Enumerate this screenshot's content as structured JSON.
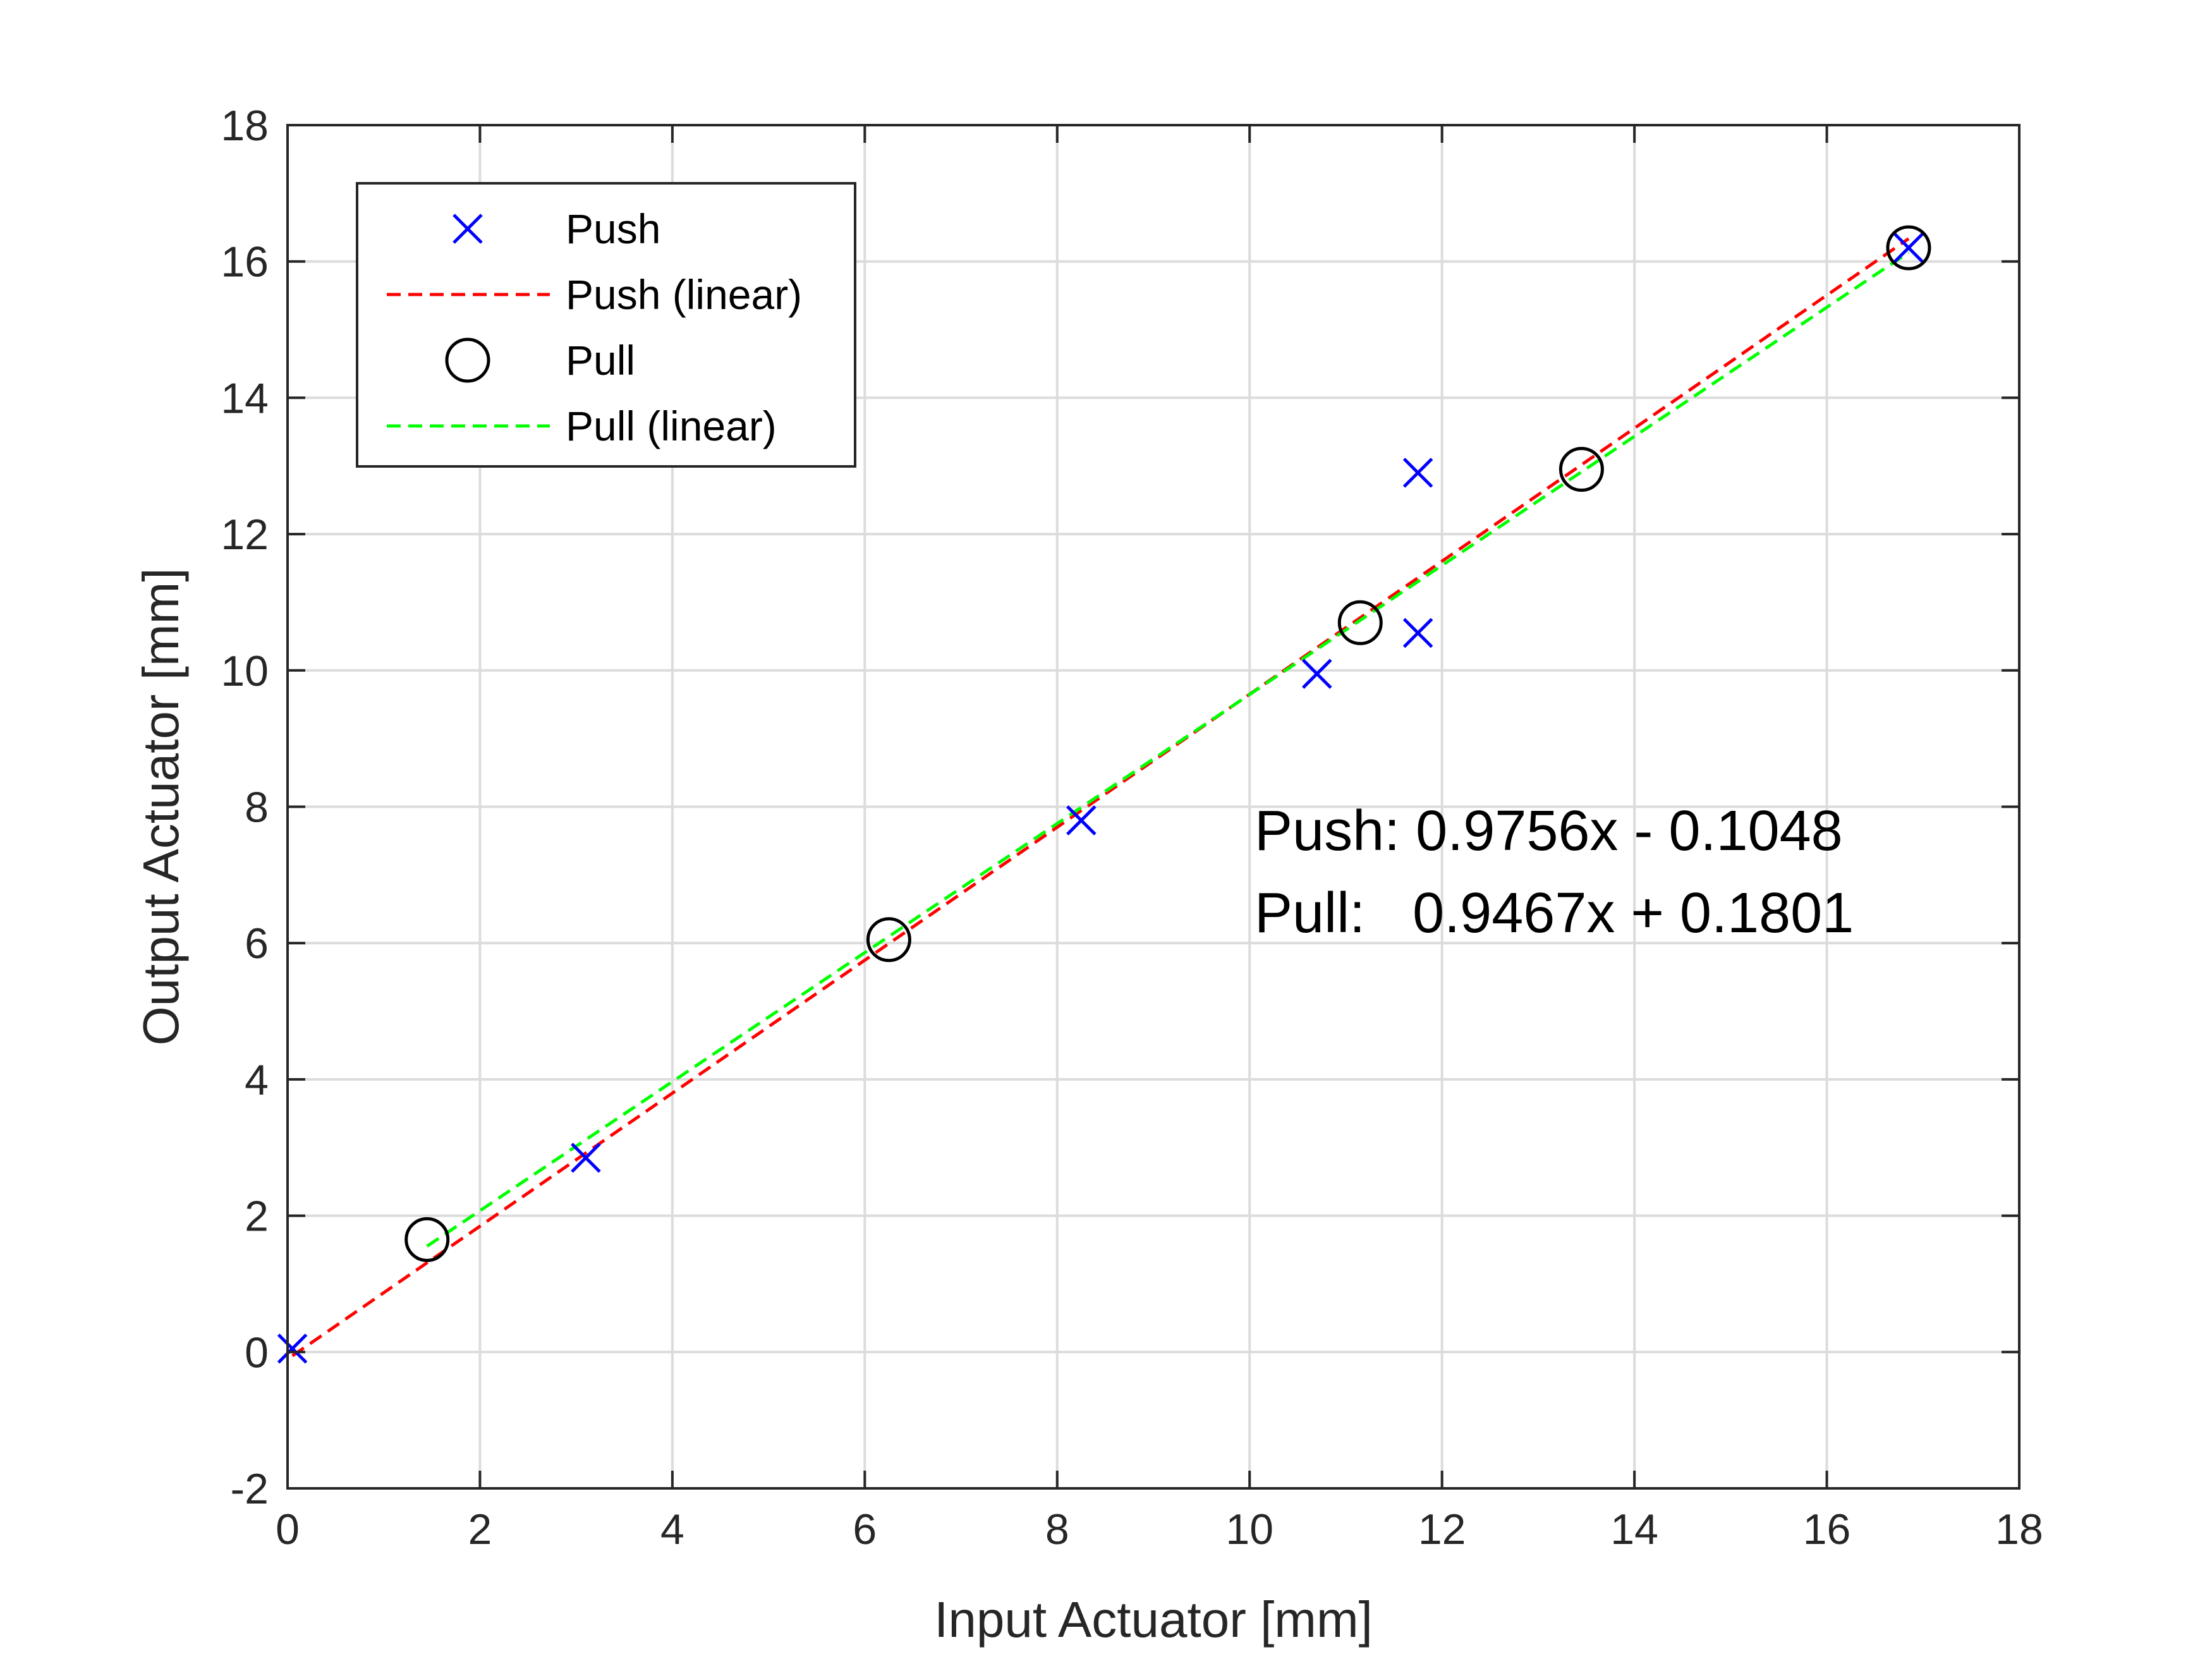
{
  "chart_data": {
    "type": "scatter",
    "xlabel": "Input Actuator [mm]",
    "ylabel": "Output Actuator [mm]",
    "xlim": [
      0,
      18
    ],
    "ylim": [
      -2,
      18
    ],
    "xticks": [
      "0",
      "2",
      "4",
      "6",
      "8",
      "10",
      "12",
      "14",
      "16",
      "18"
    ],
    "yticks": [
      "-2",
      "0",
      "2",
      "4",
      "6",
      "8",
      "10",
      "12",
      "14",
      "16",
      "18"
    ],
    "grid": true,
    "legend_position": "top-left",
    "series": [
      {
        "name": "Push",
        "kind": "markers",
        "marker": "x",
        "color": "#0000ff",
        "points": [
          [
            0.05,
            0.05
          ],
          [
            3.1,
            2.85
          ],
          [
            8.25,
            7.8
          ],
          [
            10.7,
            9.95
          ],
          [
            11.75,
            12.9
          ],
          [
            11.75,
            10.55
          ],
          [
            16.85,
            16.2
          ]
        ]
      },
      {
        "name": "Push (linear)",
        "kind": "line",
        "dash": "dashed",
        "color": "#ff0000",
        "slope": 0.9756,
        "intercept": -0.1048,
        "x_range": [
          0.05,
          16.85
        ]
      },
      {
        "name": "Pull",
        "kind": "markers",
        "marker": "o",
        "color": "#000000",
        "points": [
          [
            1.45,
            1.65
          ],
          [
            6.25,
            6.05
          ],
          [
            11.15,
            10.7
          ],
          [
            13.45,
            12.95
          ],
          [
            16.85,
            16.2
          ]
        ]
      },
      {
        "name": "Pull (linear)",
        "kind": "line",
        "dash": "dashed",
        "color": "#00ff00",
        "slope": 0.9467,
        "intercept": 0.1801,
        "x_range": [
          1.45,
          16.85
        ]
      }
    ],
    "annotations": [
      "Push: 0.9756x - 0.1048",
      "Pull:   0.9467x + 0.1801"
    ]
  }
}
